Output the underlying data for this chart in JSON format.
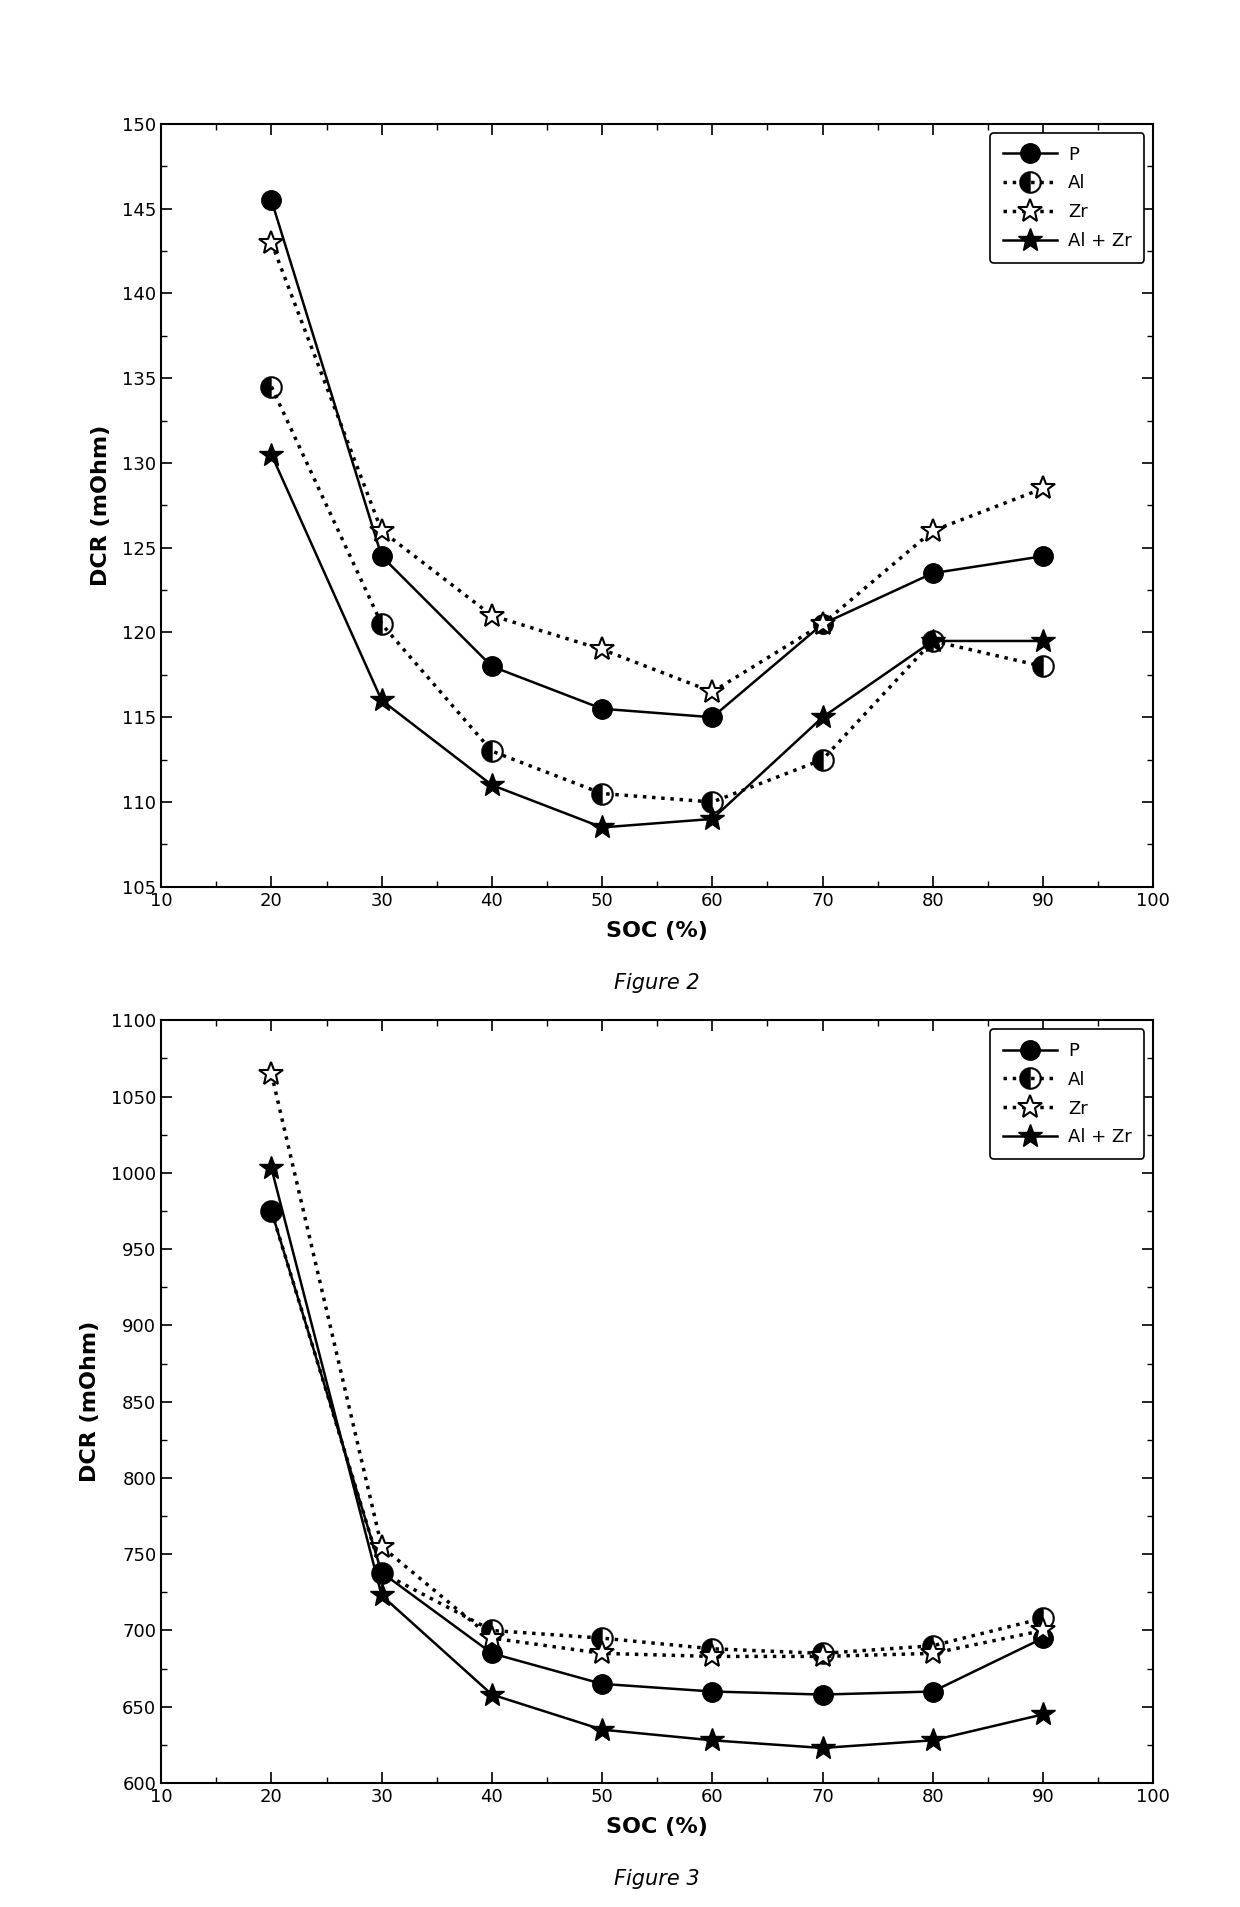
{
  "fig2": {
    "title": "Figure 2",
    "xlabel": "SOC (%)",
    "ylabel": "DCR (mOhm)",
    "xlim": [
      10,
      100
    ],
    "ylim": [
      105,
      150
    ],
    "xticks": [
      10,
      20,
      30,
      40,
      50,
      60,
      70,
      80,
      90,
      100
    ],
    "yticks": [
      105,
      110,
      115,
      120,
      125,
      130,
      135,
      140,
      145,
      150
    ],
    "soc": [
      20,
      30,
      40,
      50,
      60,
      70,
      80,
      90
    ],
    "P": [
      145.5,
      124.5,
      118.0,
      115.5,
      115.0,
      120.5,
      123.5,
      124.5
    ],
    "Al": [
      134.5,
      120.5,
      113.0,
      110.5,
      110.0,
      112.5,
      119.5,
      118.0
    ],
    "Zr": [
      143.0,
      126.0,
      121.0,
      119.0,
      116.5,
      120.5,
      126.0,
      128.5
    ],
    "AlZr": [
      130.5,
      116.0,
      111.0,
      108.5,
      109.0,
      115.0,
      119.5,
      119.5
    ]
  },
  "fig3": {
    "title": "Figure 3",
    "xlabel": "SOC (%)",
    "ylabel": "DCR (mOhm)",
    "xlim": [
      10,
      100
    ],
    "ylim": [
      600,
      1100
    ],
    "xticks": [
      10,
      20,
      30,
      40,
      50,
      60,
      70,
      80,
      90,
      100
    ],
    "yticks": [
      600,
      650,
      700,
      750,
      800,
      850,
      900,
      950,
      1000,
      1050,
      1100
    ],
    "soc": [
      20,
      30,
      40,
      50,
      60,
      70,
      80,
      90
    ],
    "P": [
      975,
      738,
      685,
      665,
      660,
      658,
      660,
      695
    ],
    "Al": [
      975,
      738,
      700,
      695,
      688,
      685,
      690,
      708
    ],
    "Zr": [
      1065,
      755,
      695,
      685,
      683,
      683,
      685,
      700
    ],
    "AlZr": [
      1003,
      723,
      658,
      635,
      628,
      623,
      628,
      645
    ]
  },
  "line_color": "#000000",
  "bg_color": "#ffffff"
}
